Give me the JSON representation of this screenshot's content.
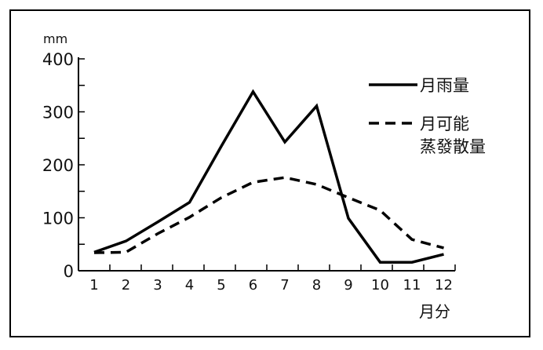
{
  "chart_data": {
    "type": "line",
    "yunit": "mm",
    "xlabel": "月分",
    "categories": [
      "1",
      "2",
      "3",
      "4",
      "5",
      "6",
      "7",
      "8",
      "9",
      "10",
      "11",
      "12"
    ],
    "yticks": [
      0,
      100,
      200,
      300,
      400
    ],
    "ylim": [
      0,
      400
    ],
    "grid": false,
    "legend_position": "top-right",
    "series": [
      {
        "name": "月雨量",
        "style": "solid",
        "color": "#000000",
        "values": [
          35,
          56,
          92,
          129,
          235,
          338,
          243,
          311,
          99,
          16,
          16,
          31
        ]
      },
      {
        "name_lines": [
          "月可能",
          "蒸發散量"
        ],
        "name": "月可能蒸發散量",
        "style": "dashed",
        "color": "#000000",
        "values": [
          34,
          35,
          70,
          101,
          138,
          167,
          176,
          163,
          138,
          114,
          59,
          43
        ]
      }
    ]
  }
}
